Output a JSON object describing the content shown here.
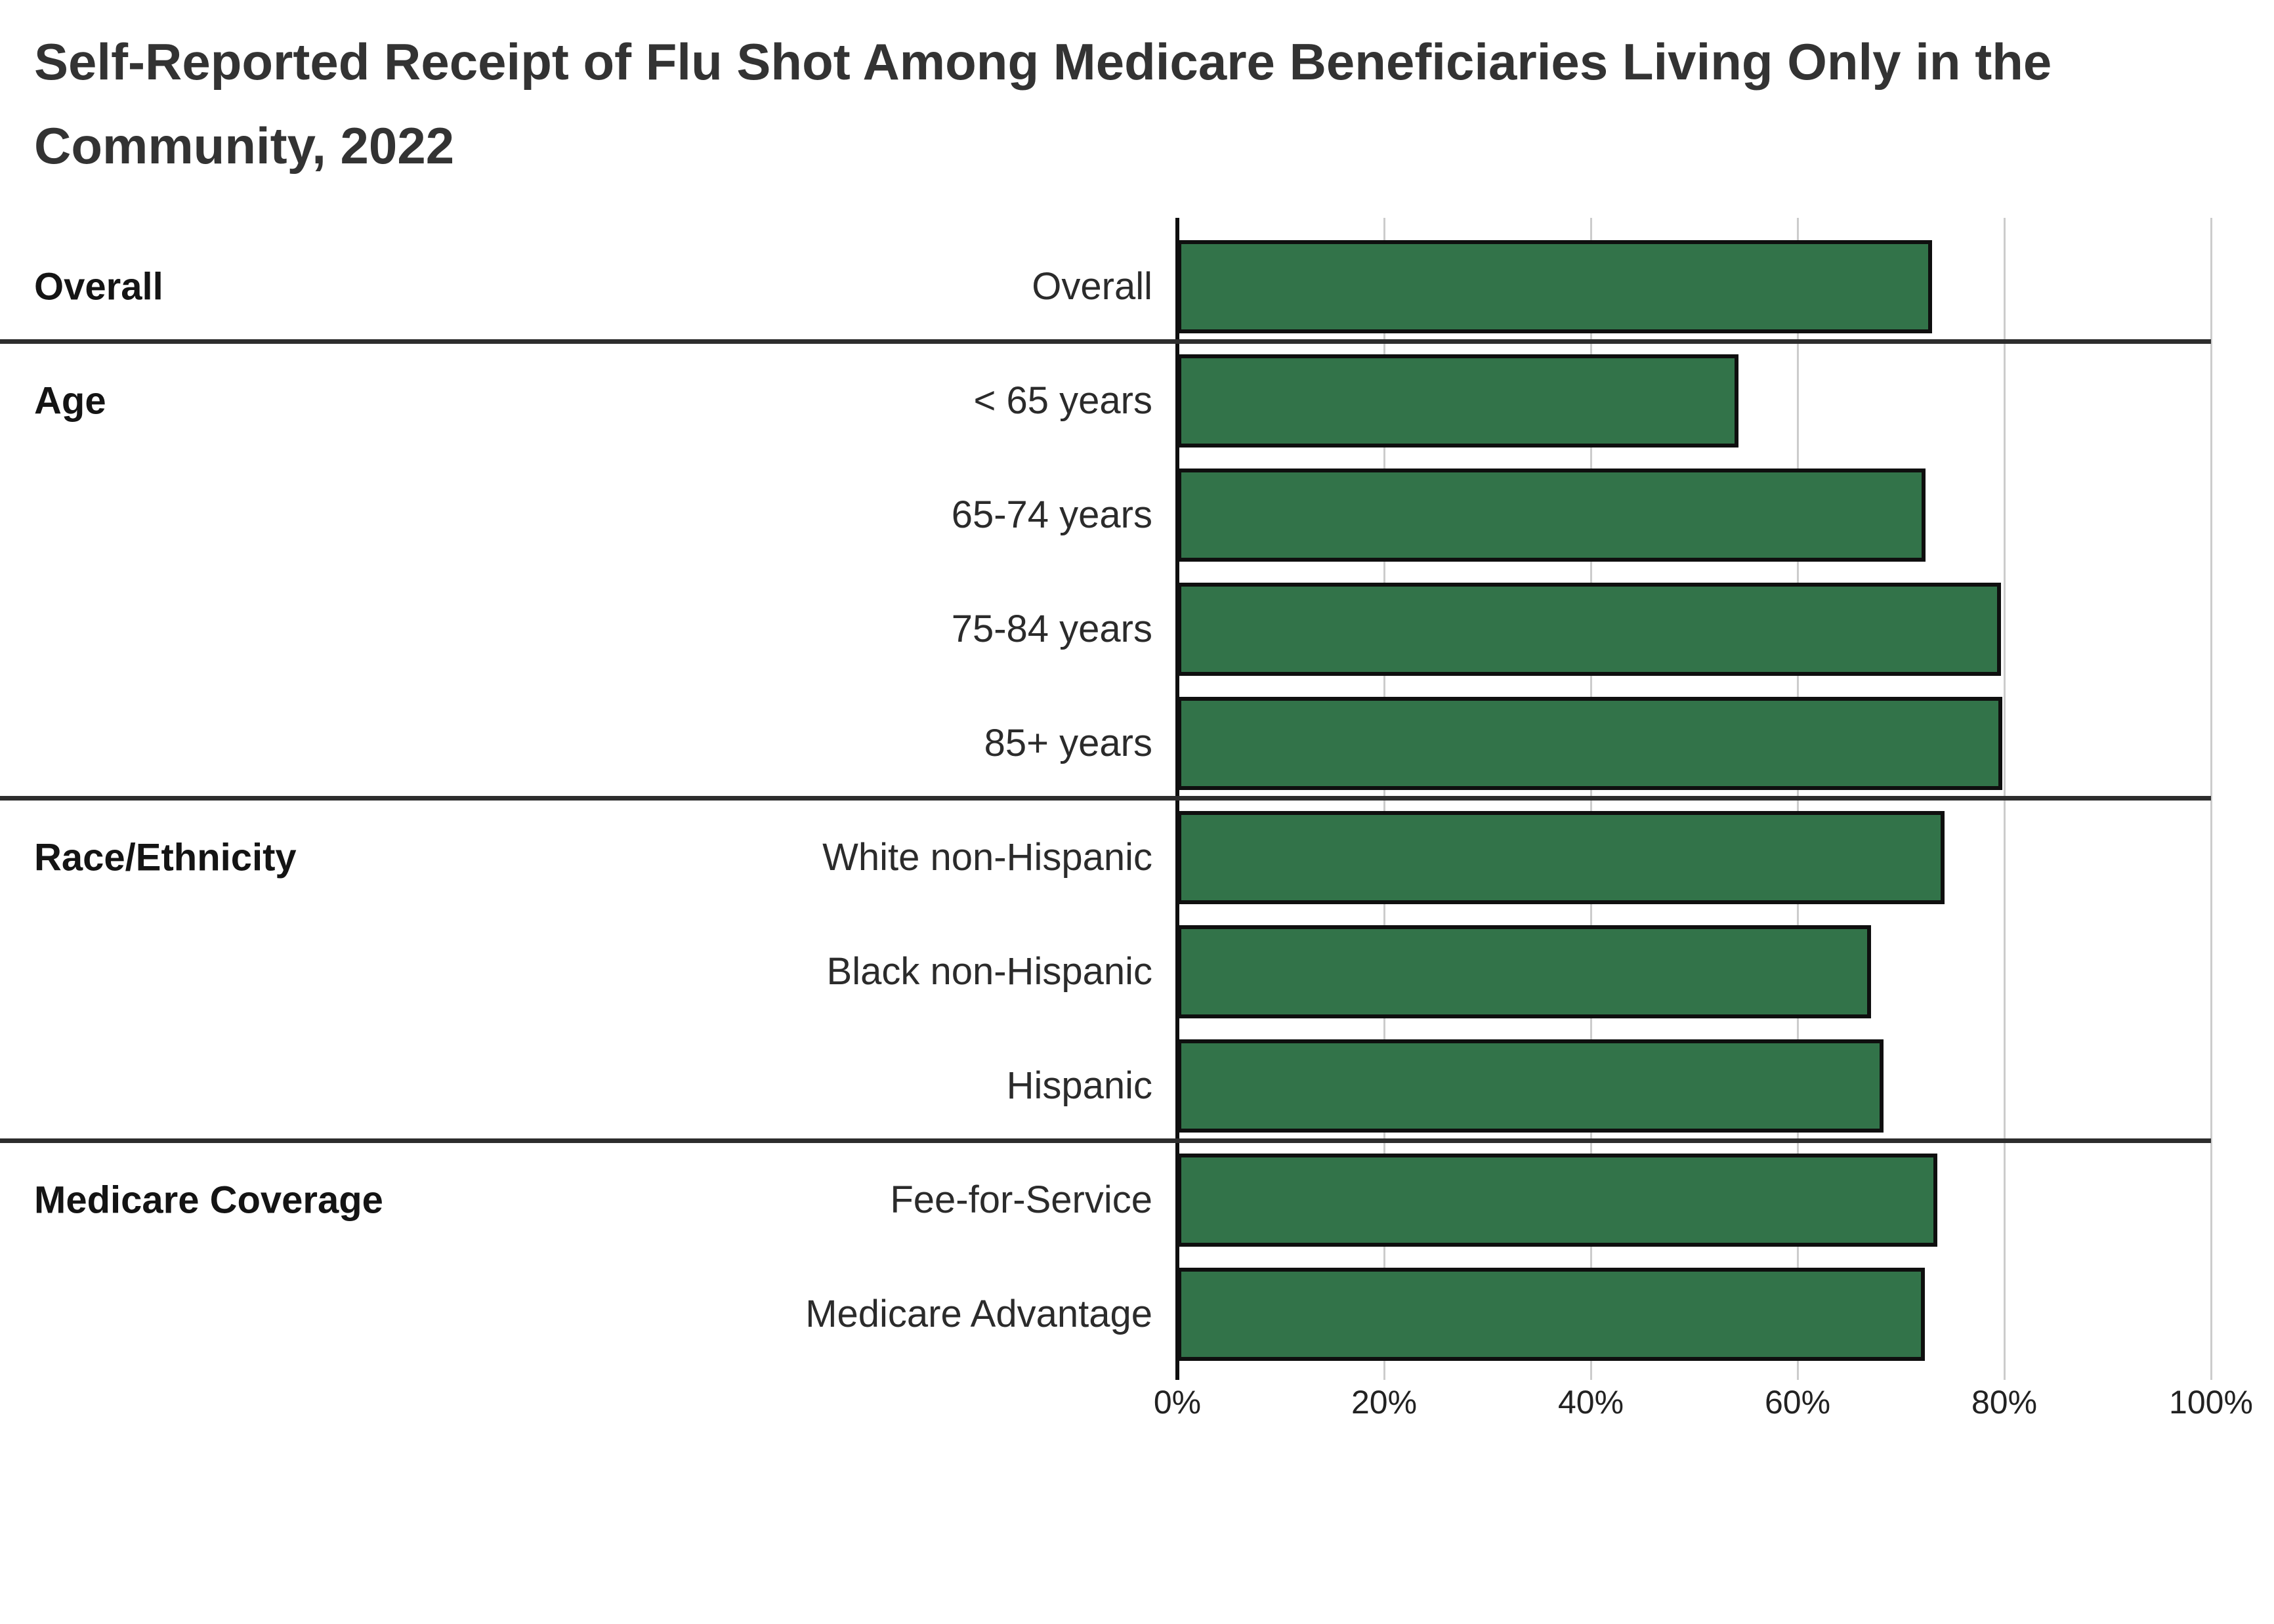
{
  "title_lines": [
    "Self-Reported Receipt of Flu Shot Among Medicare Beneficiaries Living Only in the",
    "Community, 2022"
  ],
  "chart_data": {
    "type": "bar",
    "orientation": "horizontal",
    "title": "Self-Reported Receipt of Flu Shot Among Medicare Beneficiaries Living Only in the Community, 2022",
    "xlabel": "",
    "ylabel": "",
    "unit": "%",
    "xlim": [
      0,
      100
    ],
    "x_ticks": [
      {
        "value": 0,
        "label": "0%"
      },
      {
        "value": 20,
        "label": "20%"
      },
      {
        "value": 40,
        "label": "40%"
      },
      {
        "value": 60,
        "label": "60%"
      },
      {
        "value": 80,
        "label": "80%"
      },
      {
        "value": 100,
        "label": "100%"
      }
    ],
    "grid": true,
    "legend": "none",
    "sections": [
      {
        "label": "Overall",
        "rows": [
          {
            "label": "Overall",
            "value": 73.0
          }
        ]
      },
      {
        "label": "Age",
        "rows": [
          {
            "label": "< 65 years",
            "value": 54.3
          },
          {
            "label": "65-74 years",
            "value": 72.4
          },
          {
            "label": "75-84 years",
            "value": 79.7
          },
          {
            "label": "85+ years",
            "value": 79.8
          }
        ]
      },
      {
        "label": "Race/Ethnicity",
        "rows": [
          {
            "label": "White non-Hispanic",
            "value": 74.2
          },
          {
            "label": "Black non-Hispanic",
            "value": 67.1
          },
          {
            "label": "Hispanic",
            "value": 68.3
          }
        ]
      },
      {
        "label": "Medicare Coverage",
        "rows": [
          {
            "label": "Fee-for-Service",
            "value": 73.5
          },
          {
            "label": "Medicare Advantage",
            "value": 72.3
          }
        ]
      }
    ],
    "colors": {
      "bar_fill": "#327349",
      "bar_border": "#0f0f0f",
      "axis_line": "#0f0f0f",
      "gridline": "#cccccc",
      "section_divider": "#2d2d2d",
      "title_text": "#333333",
      "label_text": "#2b2b2b",
      "tick_text": "#222222"
    }
  }
}
